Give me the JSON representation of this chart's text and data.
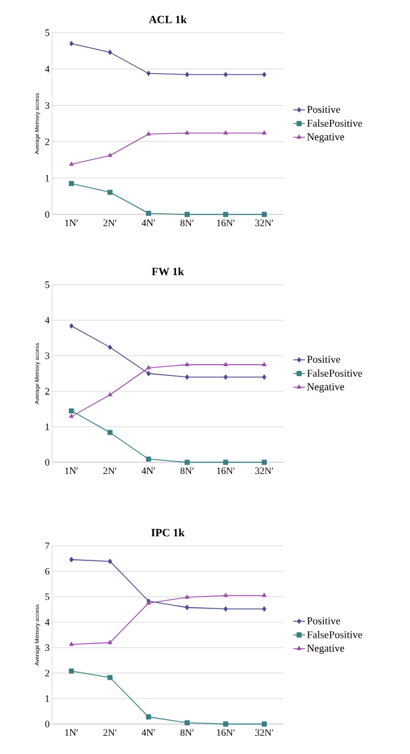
{
  "chart_data": [
    {
      "type": "line",
      "title": "ACL 1k",
      "ylabel": "Average Memory access",
      "categories": [
        "1N′",
        "2N′",
        "4N′",
        "8N′",
        "16N′",
        "32N′"
      ],
      "ylim": [
        0,
        5
      ],
      "yticks": [
        0,
        1,
        2,
        3,
        4,
        5
      ],
      "grid": "y",
      "legend": "right",
      "line_style": "solid",
      "series": [
        {
          "name": "Positive",
          "color": "#4e4b8c",
          "marker": "diamond",
          "values": [
            4.7,
            4.46,
            3.88,
            3.85,
            3.85,
            3.85
          ]
        },
        {
          "name": "FalsePositive",
          "color": "#3a7f82",
          "marker": "square",
          "values": [
            0.85,
            0.61,
            0.03,
            0,
            0,
            0
          ]
        },
        {
          "name": "Negative",
          "color": "#9b4fa8",
          "marker": "triangle",
          "values": [
            1.38,
            1.62,
            2.21,
            2.24,
            2.24,
            2.24
          ]
        }
      ]
    },
    {
      "type": "line",
      "title": "FW 1k",
      "ylabel": "Average Memory access",
      "categories": [
        "1N′",
        "2N′",
        "4N′",
        "8N′",
        "16N′",
        "32N′"
      ],
      "ylim": [
        0,
        5
      ],
      "yticks": [
        0,
        1,
        2,
        3,
        4,
        5
      ],
      "grid": "y",
      "legend": "right",
      "line_style": "solid",
      "series": [
        {
          "name": "Positive",
          "color": "#4e4b8c",
          "marker": "diamond",
          "values": [
            3.84,
            3.24,
            2.5,
            2.4,
            2.4,
            2.4
          ]
        },
        {
          "name": "FalsePositive",
          "color": "#3a7f82",
          "marker": "square",
          "values": [
            1.45,
            0.84,
            0.09,
            0,
            0,
            0
          ]
        },
        {
          "name": "Negative",
          "color": "#9b4fa8",
          "marker": "triangle",
          "values": [
            1.29,
            1.9,
            2.66,
            2.75,
            2.75,
            2.75
          ]
        }
      ]
    },
    {
      "type": "line",
      "title": "IPC 1k",
      "ylabel": "Average Memory access",
      "categories": [
        "1N′",
        "2N′",
        "4N′",
        "8N′",
        "16N′",
        "32N′"
      ],
      "ylim": [
        0,
        7
      ],
      "yticks": [
        0,
        1,
        2,
        3,
        4,
        5,
        6,
        7
      ],
      "grid": "y",
      "legend": "right",
      "line_style": "solid",
      "series": [
        {
          "name": "Positive",
          "color": "#4e4b8c",
          "marker": "diamond",
          "values": [
            6.46,
            6.39,
            4.83,
            4.58,
            4.52,
            4.52
          ]
        },
        {
          "name": "FalsePositive",
          "color": "#3a7f82",
          "marker": "square",
          "values": [
            2.08,
            1.83,
            0.28,
            0.05,
            0,
            0
          ]
        },
        {
          "name": "Negative",
          "color": "#9b4fa8",
          "marker": "triangle",
          "values": [
            3.13,
            3.2,
            4.75,
            4.98,
            5.05,
            5.05
          ]
        }
      ]
    }
  ]
}
